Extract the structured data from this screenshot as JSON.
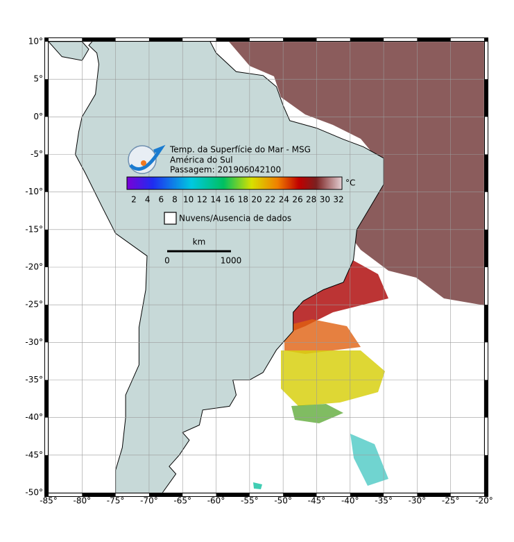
{
  "map": {
    "lat_labels": [
      "10°",
      "5°",
      "0°",
      "-5°",
      "-10°",
      "-15°",
      "-20°",
      "-25°",
      "-30°",
      "-35°",
      "-40°",
      "-45°",
      "-50°"
    ],
    "lon_labels": [
      "-85°",
      "-80°",
      "-75°",
      "-70°",
      "-65°",
      "-60°",
      "-55°",
      "-50°",
      "-45°",
      "-40°",
      "-35°",
      "-30°",
      "-25°",
      "-20°"
    ]
  },
  "legend": {
    "title_lines": [
      "Temp. da Superfície do Mar - MSG",
      "América do Sul",
      "Passagem: 201906042100"
    ],
    "colorbar_ticks": [
      2,
      4,
      6,
      8,
      10,
      12,
      14,
      16,
      18,
      20,
      22,
      24,
      26,
      28,
      30,
      32
    ],
    "colorbar_unit": "°C",
    "no_data": "Nuvens/Ausencia de dados",
    "scale_unit": "km",
    "scale_labels": [
      "0",
      "1000"
    ]
  }
}
